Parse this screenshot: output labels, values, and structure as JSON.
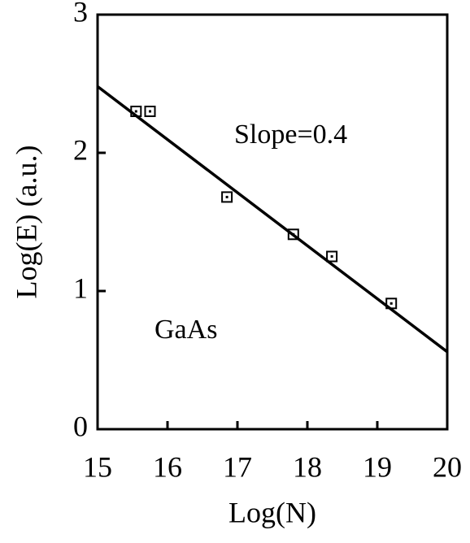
{
  "chart_data": {
    "type": "scatter",
    "xlabel": "Log(N)",
    "ylabel": "Log(E) (a.u.)",
    "annotations": [
      "Slope=0.4",
      "GaAs"
    ],
    "xlim": [
      15,
      20
    ],
    "xticks": [
      15,
      16,
      17,
      18,
      19,
      20
    ],
    "ylim": [
      0,
      3
    ],
    "yticks": [
      0,
      1,
      2,
      3
    ],
    "grid": false,
    "series": [
      {
        "mode": "markers",
        "marker": "square",
        "color": "#000000",
        "x": [
          15.55,
          15.75,
          16.85,
          17.8,
          18.35,
          19.2
        ],
        "values": [
          2.3,
          2.3,
          1.68,
          1.41,
          1.25,
          0.91
        ]
      },
      {
        "mode": "line",
        "color": "#000000",
        "x": [
          15,
          20
        ],
        "values": [
          2.48,
          0.56
        ]
      }
    ]
  }
}
